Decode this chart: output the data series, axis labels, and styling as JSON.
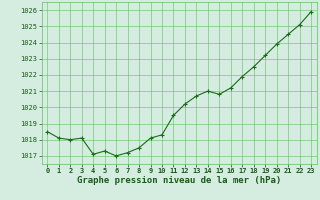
{
  "x": [
    0,
    1,
    2,
    3,
    4,
    5,
    6,
    7,
    8,
    9,
    10,
    11,
    12,
    13,
    14,
    15,
    16,
    17,
    18,
    19,
    20,
    21,
    22,
    23
  ],
  "y": [
    1018.5,
    1018.1,
    1018.0,
    1018.1,
    1017.1,
    1017.3,
    1017.0,
    1017.2,
    1017.5,
    1018.1,
    1018.3,
    1019.5,
    1020.2,
    1020.7,
    1021.0,
    1020.8,
    1021.2,
    1021.9,
    1022.5,
    1023.2,
    1023.9,
    1024.5,
    1025.1,
    1025.9
  ],
  "line_color": "#1a6b1a",
  "marker": "+",
  "marker_size": 3,
  "marker_linewidth": 0.8,
  "bg_color": "#d4ede0",
  "grid_color": "#66bb66",
  "text_color": "#1a5a1a",
  "ylim": [
    1016.5,
    1026.5
  ],
  "yticks": [
    1017,
    1018,
    1019,
    1020,
    1021,
    1022,
    1023,
    1024,
    1025,
    1026
  ],
  "xticks": [
    0,
    1,
    2,
    3,
    4,
    5,
    6,
    7,
    8,
    9,
    10,
    11,
    12,
    13,
    14,
    15,
    16,
    17,
    18,
    19,
    20,
    21,
    22,
    23
  ],
  "tick_fontsize": 5.0,
  "title": "Graphe pression niveau de la mer (hPa)",
  "title_fontsize": 6.5,
  "linewidth": 0.8
}
